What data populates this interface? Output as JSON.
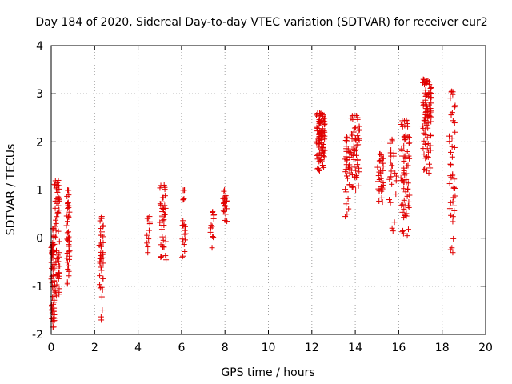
{
  "chart_data": {
    "type": "scatter",
    "title": "Day 184 of 2020, Sidereal Day-to-day VTEC variation (SDTVAR) for receiver eur2",
    "xlabel": "GPS time / hours",
    "ylabel": "SDTVAR / TECUs",
    "xlim": [
      0,
      20
    ],
    "ylim": [
      -2,
      4
    ],
    "x_ticks": [
      "0",
      "2",
      "4",
      "6",
      "8",
      "10",
      "12",
      "14",
      "16",
      "18",
      "20"
    ],
    "y_ticks": [
      "-2",
      "-1",
      "0",
      "1",
      "2",
      "3",
      "4"
    ],
    "grid": true,
    "marker": "plus",
    "color": "#e00000",
    "clusters": [
      {
        "x": 0.0,
        "x_end": 0.15,
        "y_min": -1.85,
        "y_max": 0.2,
        "n": 70
      },
      {
        "x": 0.15,
        "x_end": 0.4,
        "y_min": -1.2,
        "y_max": 1.2,
        "n": 60
      },
      {
        "x": 0.7,
        "x_end": 0.85,
        "y_min": -0.95,
        "y_max": 1.0,
        "n": 45
      },
      {
        "x": 2.2,
        "x_end": 2.4,
        "y_min": -1.7,
        "y_max": 0.45,
        "n": 40
      },
      {
        "x": 4.4,
        "x_end": 4.55,
        "y_min": -0.3,
        "y_max": 0.45,
        "n": 12
      },
      {
        "x": 5.0,
        "x_end": 5.3,
        "y_min": -0.45,
        "y_max": 1.1,
        "n": 40
      },
      {
        "x": 6.0,
        "x_end": 6.2,
        "y_min": -0.4,
        "y_max": 1.0,
        "n": 22
      },
      {
        "x": 7.3,
        "x_end": 7.5,
        "y_min": -0.2,
        "y_max": 0.55,
        "n": 12
      },
      {
        "x": 7.9,
        "x_end": 8.1,
        "y_min": 0.35,
        "y_max": 1.0,
        "n": 20
      },
      {
        "x": 12.2,
        "x_end": 12.6,
        "y_min": 1.4,
        "y_max": 2.6,
        "n": 90
      },
      {
        "x": 13.5,
        "x_end": 13.75,
        "y_min": 0.45,
        "y_max": 2.1,
        "n": 35
      },
      {
        "x": 13.8,
        "x_end": 14.2,
        "y_min": 1.0,
        "y_max": 2.55,
        "n": 55
      },
      {
        "x": 15.0,
        "x_end": 15.3,
        "y_min": 0.75,
        "y_max": 1.75,
        "n": 30
      },
      {
        "x": 15.5,
        "x_end": 15.9,
        "y_min": 0.15,
        "y_max": 2.05,
        "n": 25
      },
      {
        "x": 16.1,
        "x_end": 16.5,
        "y_min": 0.05,
        "y_max": 2.45,
        "n": 70
      },
      {
        "x": 17.1,
        "x_end": 17.5,
        "y_min": 1.35,
        "y_max": 3.3,
        "n": 90
      },
      {
        "x": 18.3,
        "x_end": 18.6,
        "y_min": -0.3,
        "y_max": 3.05,
        "n": 45
      }
    ]
  }
}
